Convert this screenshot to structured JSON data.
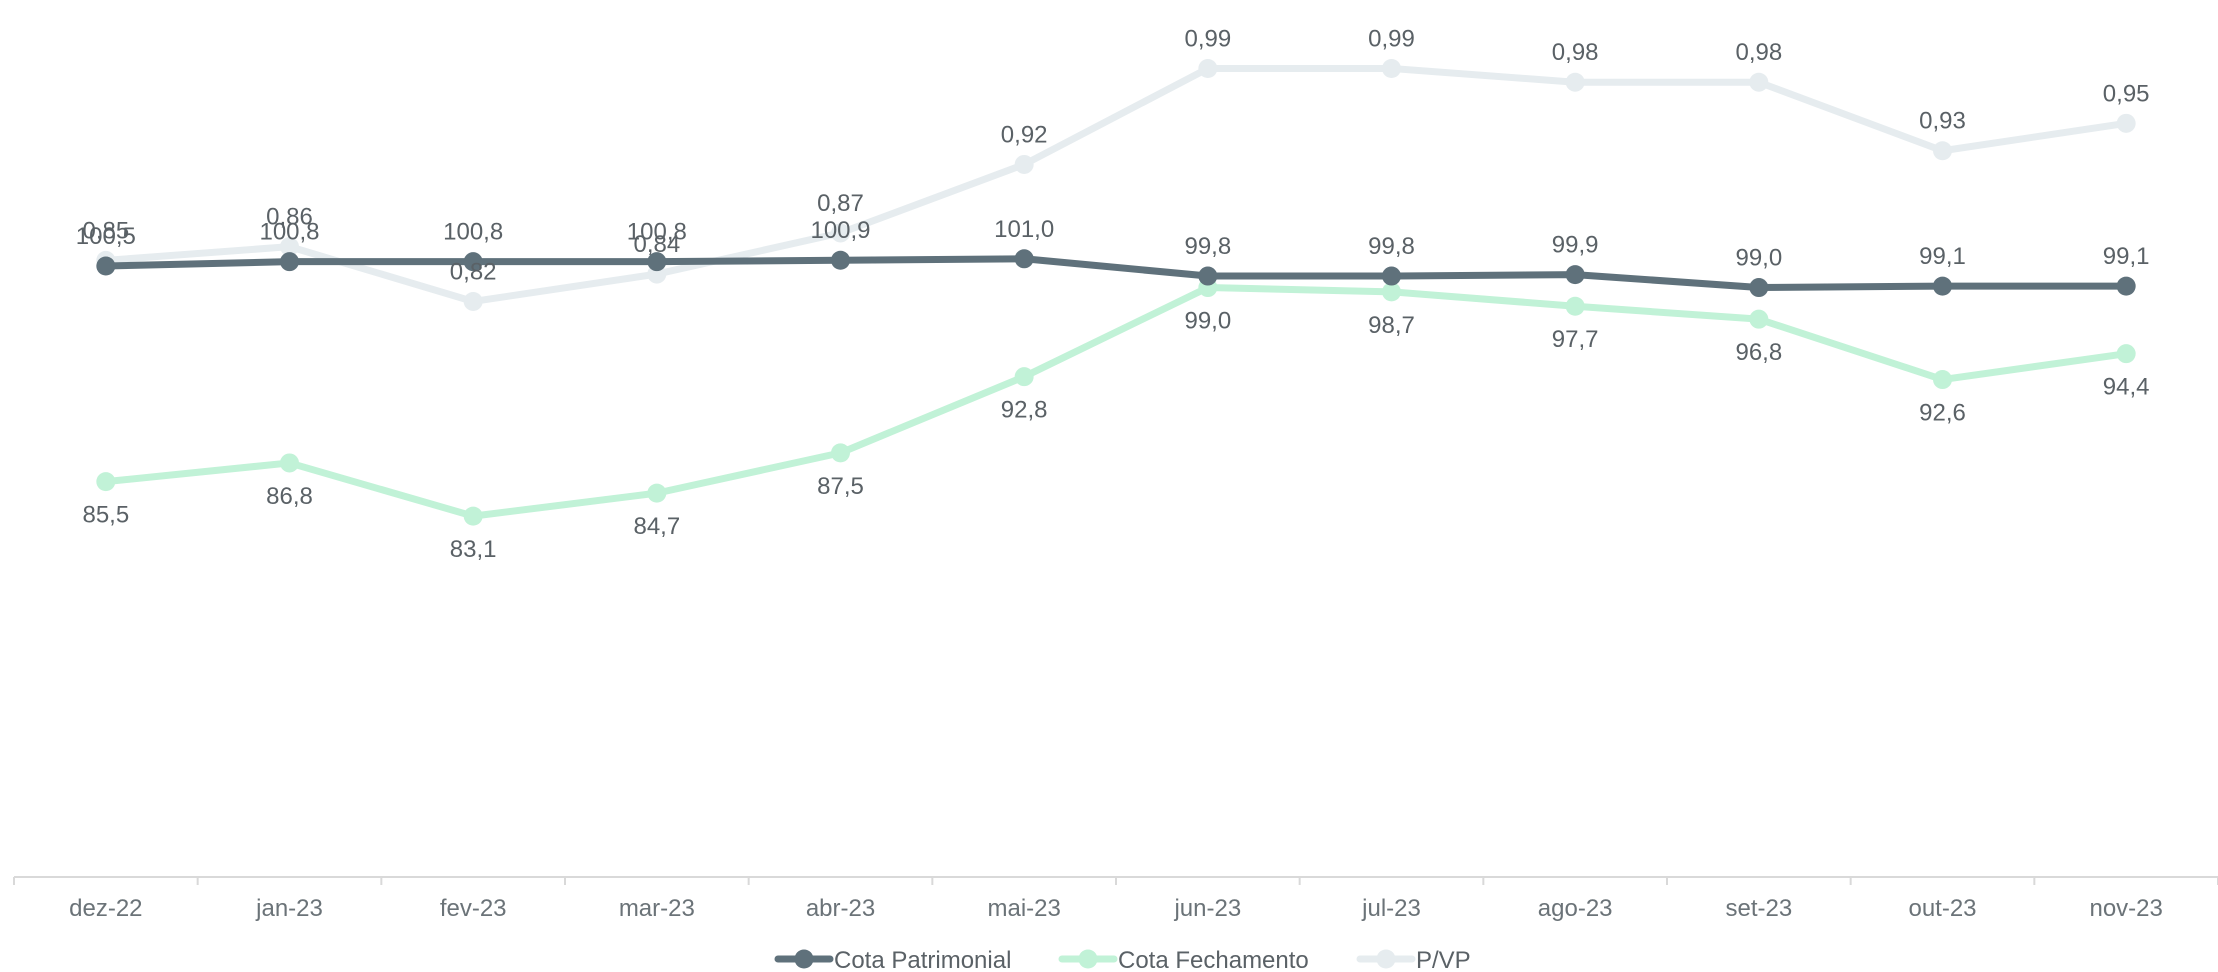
{
  "chart_data": {
    "type": "line",
    "categories": [
      "dez-22",
      "jan-23",
      "fev-23",
      "mar-23",
      "abr-23",
      "mai-23",
      "jun-23",
      "jul-23",
      "ago-23",
      "set-23",
      "out-23",
      "nov-23"
    ],
    "series": [
      {
        "name": "Cota Patrimonial",
        "color": "#5f717b",
        "axis": "primary",
        "label_position": "above",
        "values": [
          100.5,
          100.8,
          100.8,
          100.8,
          100.9,
          101.0,
          99.8,
          99.8,
          99.9,
          99.0,
          99.1,
          99.1
        ],
        "labels": [
          "100,5",
          "100,8",
          "100,8",
          "100,8",
          "100,9",
          "101,0",
          "99,8",
          "99,8",
          "99,9",
          "99,0",
          "99,1",
          "99,1"
        ]
      },
      {
        "name": "Cota Fechamento",
        "color": "#c1f2d7",
        "axis": "primary",
        "label_position": "below",
        "values": [
          85.5,
          86.8,
          83.1,
          84.7,
          87.5,
          92.8,
          99.0,
          98.7,
          97.7,
          96.8,
          92.6,
          94.4
        ],
        "labels": [
          "85,5",
          "86,8",
          "83,1",
          "84,7",
          "87,5",
          "92,8",
          "99,0",
          "98,7",
          "97,7",
          "96,8",
          "92,6",
          "94,4"
        ]
      },
      {
        "name": "P/VP",
        "color": "#e6ecef",
        "axis": "secondary",
        "label_position": "above",
        "values": [
          0.85,
          0.86,
          0.82,
          0.84,
          0.87,
          0.92,
          0.99,
          0.99,
          0.98,
          0.98,
          0.93,
          0.95
        ],
        "labels": [
          "0,85",
          "0,86",
          "0,82",
          "0,84",
          "0,87",
          "0,92",
          "0,99",
          "0,99",
          "0,98",
          "0,98",
          "0,93",
          "0,95"
        ]
      }
    ],
    "primary_axis": {
      "ylim": [
        58,
        119
      ],
      "visible": false
    },
    "secondary_axis": {
      "ylim": [
        0.4,
        1.04
      ],
      "visible": false
    },
    "axis_line_color": "#d9d9d9",
    "grid": false,
    "legend_position": "bottom"
  }
}
